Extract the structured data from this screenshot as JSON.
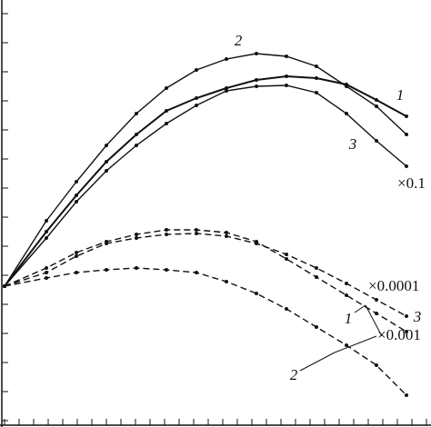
{
  "chart_data": {
    "type": "line",
    "x": [
      5,
      51,
      84,
      117,
      150,
      183,
      216,
      249,
      282,
      315,
      348,
      381,
      414,
      447
    ],
    "xlim": [
      0,
      474
    ],
    "ylim": [
      0,
      470
    ],
    "xticks": [
      5,
      21,
      37,
      53,
      69,
      85,
      101,
      117,
      133,
      149,
      165,
      181,
      197,
      213,
      229,
      245,
      261,
      277,
      293,
      309,
      325,
      341,
      357,
      373,
      389,
      405,
      421,
      437,
      453,
      469
    ],
    "yticks": [
      7,
      39,
      71,
      103,
      135,
      167,
      199,
      231,
      263,
      295,
      327,
      359,
      391,
      423,
      455
    ],
    "series": [
      {
        "name": "2",
        "color": "#111111",
        "style": "solid",
        "values": [
          155,
          227,
          270,
          310,
          345,
          373,
          393,
          405,
          411,
          408,
          397,
          375,
          353,
          322
        ]
      },
      {
        "name": "1",
        "color": "#111111",
        "style": "solid",
        "values": [
          155,
          215,
          255,
          292,
          322,
          348,
          362,
          373,
          382,
          386,
          384,
          377,
          360,
          342
        ]
      },
      {
        "name": "3",
        "color": "#111111",
        "style": "solid",
        "values": [
          155,
          208,
          248,
          282,
          310,
          334,
          354,
          370,
          375,
          376,
          368,
          345,
          315,
          287
        ]
      },
      {
        "name": "1",
        "color": "#111111",
        "style": "dashed",
        "values": [
          155,
          175,
          192,
          204,
          212,
          217,
          217,
          214,
          204,
          185,
          165,
          145,
          125,
          105
        ]
      },
      {
        "name": "3",
        "color": "#111111",
        "style": "dashed",
        "values": [
          155,
          170,
          188,
          202,
          208,
          212,
          213,
          210,
          202,
          190,
          175,
          158,
          140,
          122
        ]
      },
      {
        "name": "2",
        "color": "#111111",
        "style": "dashed",
        "values": [
          155,
          164,
          170,
          173,
          175,
          173,
          170,
          160,
          147,
          130,
          110,
          90,
          68,
          35
        ]
      }
    ],
    "annotations": [
      "×0.1",
      "×0.0001",
      "×0.001"
    ]
  }
}
